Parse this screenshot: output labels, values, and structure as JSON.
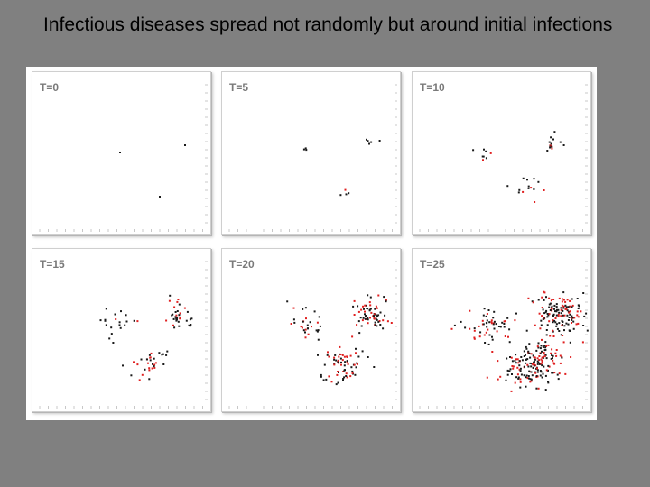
{
  "title": "Infectious diseases spread not randomly but around initial infections",
  "colors": {
    "background": "#808080",
    "figure_background": "#ffffff",
    "infected_black": "#1a1a1a",
    "infected_red": "#e02020",
    "panel_label": "#7a7a7a"
  },
  "panels": [
    {
      "label": "T=0"
    },
    {
      "label": "T=5"
    },
    {
      "label": "T=10"
    },
    {
      "label": "T=15"
    },
    {
      "label": "T=20"
    },
    {
      "label": "T=25"
    }
  ]
}
